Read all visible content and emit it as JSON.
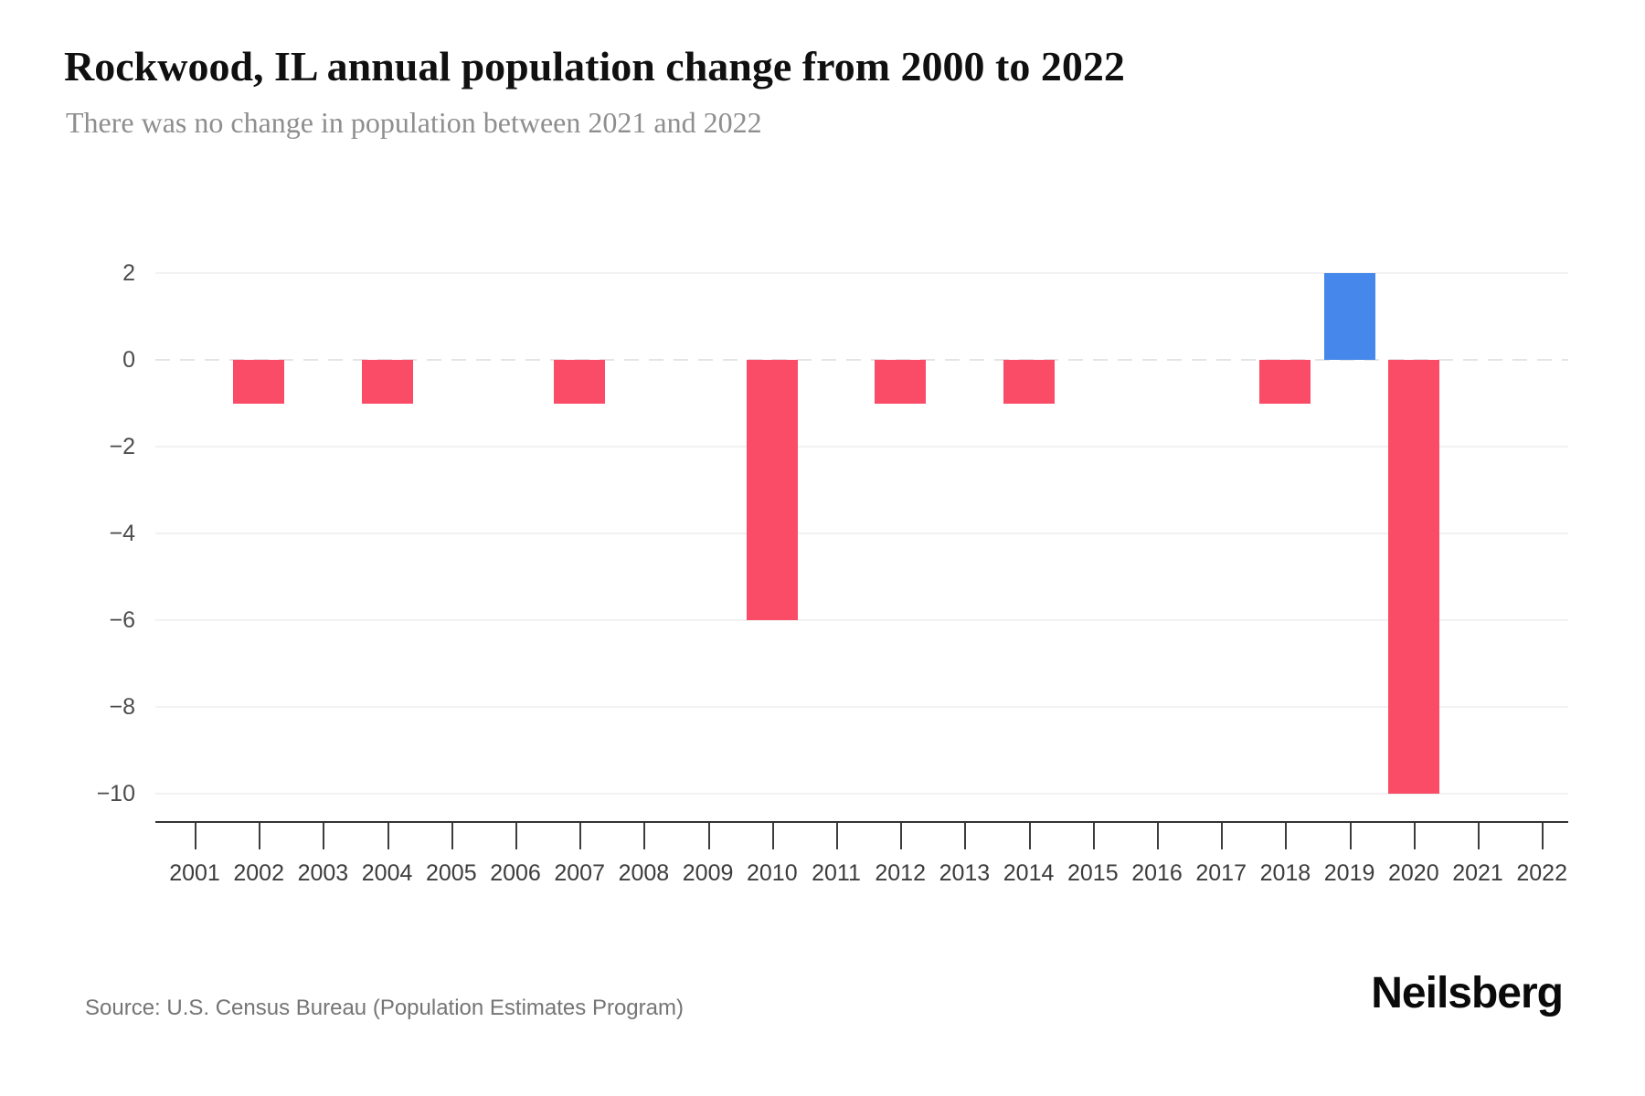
{
  "header": {
    "title": "Rockwood, IL annual population change from 2000 to 2022",
    "subtitle": "There was no change in population between 2021 and 2022"
  },
  "chart_data": {
    "type": "bar",
    "title": "Rockwood, IL annual population change from 2000 to 2022",
    "subtitle": "There was no change in population between 2021 and 2022",
    "categories": [
      "2001",
      "2002",
      "2003",
      "2004",
      "2005",
      "2006",
      "2007",
      "2008",
      "2009",
      "2010",
      "2011",
      "2012",
      "2013",
      "2014",
      "2015",
      "2016",
      "2017",
      "2018",
      "2019",
      "2020",
      "2021",
      "2022"
    ],
    "values": [
      0,
      -1,
      0,
      -1,
      0,
      0,
      -1,
      0,
      0,
      -6,
      0,
      -1,
      0,
      -1,
      0,
      0,
      0,
      -1,
      2,
      -10,
      0,
      0
    ],
    "xlabel": "",
    "ylabel": "",
    "ylim": [
      -10,
      2
    ],
    "yticks": [
      2,
      0,
      -2,
      -4,
      -6,
      -8,
      -10
    ],
    "grid": "horizontal",
    "zero_line_style": "dashed",
    "legend": "none",
    "colors": {
      "positive": "#4587ea",
      "negative": "#fa4b67"
    }
  },
  "footer": {
    "source": "Source: U.S. Census Bureau (Population Estimates Program)",
    "logo": "Neilsberg"
  }
}
